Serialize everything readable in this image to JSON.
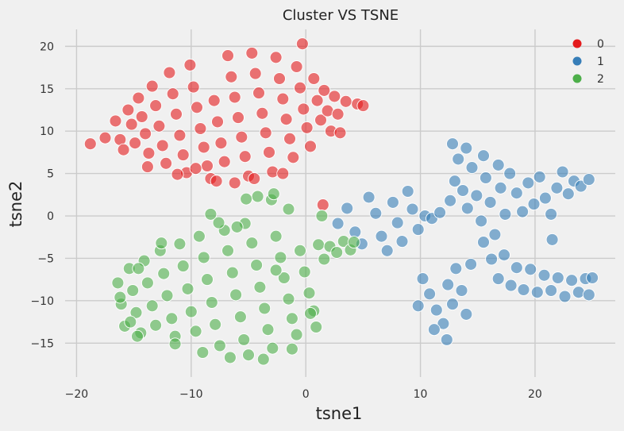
{
  "chart_data": {
    "type": "scatter",
    "title": "Cluster VS TSNE",
    "xlabel": "tsne1",
    "ylabel": "tsne2",
    "xlim": [
      -21,
      27
    ],
    "ylim": [
      -19,
      22
    ],
    "xticks": [
      -20,
      -10,
      0,
      10,
      20
    ],
    "yticks": [
      -15,
      -10,
      -5,
      0,
      5,
      10,
      15,
      20
    ],
    "xtick_labels": [
      "−20",
      "−10",
      "0",
      "10",
      "20"
    ],
    "ytick_labels": [
      "−15",
      "−10",
      "−5",
      "0",
      "5",
      "10",
      "15",
      "20"
    ],
    "grid": true,
    "legend_position": "top-right",
    "series": [
      {
        "name": "0",
        "color": "#e41a1c",
        "points": [
          [
            -18.8,
            8.5
          ],
          [
            -17.5,
            9.2
          ],
          [
            -16.6,
            11.2
          ],
          [
            -16.2,
            9.0
          ],
          [
            -15.9,
            7.8
          ],
          [
            -15.5,
            12.5
          ],
          [
            -15.2,
            10.8
          ],
          [
            -14.9,
            8.6
          ],
          [
            -14.6,
            13.9
          ],
          [
            -14.3,
            11.7
          ],
          [
            -14.0,
            9.7
          ],
          [
            -13.7,
            7.4
          ],
          [
            -13.4,
            15.3
          ],
          [
            -13.1,
            13.0
          ],
          [
            -12.8,
            10.6
          ],
          [
            -12.5,
            8.3
          ],
          [
            -12.2,
            6.2
          ],
          [
            -11.9,
            16.9
          ],
          [
            -11.6,
            14.4
          ],
          [
            -11.3,
            12.0
          ],
          [
            -11.0,
            9.5
          ],
          [
            -10.7,
            7.2
          ],
          [
            -10.4,
            5.1
          ],
          [
            -10.1,
            17.8
          ],
          [
            -9.8,
            15.2
          ],
          [
            -9.5,
            12.8
          ],
          [
            -9.2,
            10.3
          ],
          [
            -8.9,
            8.1
          ],
          [
            -8.6,
            5.9
          ],
          [
            -8.3,
            4.4
          ],
          [
            -8.0,
            13.6
          ],
          [
            -7.7,
            11.1
          ],
          [
            -7.4,
            8.6
          ],
          [
            -7.1,
            6.4
          ],
          [
            -6.8,
            18.9
          ],
          [
            -6.5,
            16.4
          ],
          [
            -6.2,
            14.0
          ],
          [
            -5.9,
            11.6
          ],
          [
            -5.6,
            9.3
          ],
          [
            -5.3,
            7.0
          ],
          [
            -5.0,
            4.7
          ],
          [
            -4.7,
            19.2
          ],
          [
            -4.4,
            16.8
          ],
          [
            -4.1,
            14.5
          ],
          [
            -3.8,
            12.1
          ],
          [
            -3.5,
            9.8
          ],
          [
            -3.2,
            7.5
          ],
          [
            -2.9,
            5.2
          ],
          [
            -2.6,
            18.7
          ],
          [
            -2.3,
            16.2
          ],
          [
            -2.0,
            13.8
          ],
          [
            -1.7,
            11.4
          ],
          [
            -1.4,
            9.1
          ],
          [
            -1.1,
            6.9
          ],
          [
            -0.8,
            17.6
          ],
          [
            -0.5,
            15.1
          ],
          [
            -0.2,
            12.6
          ],
          [
            0.1,
            10.4
          ],
          [
            0.4,
            8.2
          ],
          [
            0.7,
            16.2
          ],
          [
            1.0,
            13.6
          ],
          [
            1.3,
            11.3
          ],
          [
            1.6,
            14.8
          ],
          [
            1.9,
            12.4
          ],
          [
            2.2,
            10.0
          ],
          [
            2.5,
            14.1
          ],
          [
            2.8,
            12.0
          ],
          [
            3.5,
            13.5
          ],
          [
            4.5,
            13.2
          ],
          [
            5.0,
            13.0
          ],
          [
            -13.8,
            5.8
          ],
          [
            -11.2,
            4.9
          ],
          [
            -9.6,
            5.6
          ],
          [
            -7.8,
            4.1
          ],
          [
            -6.2,
            3.9
          ],
          [
            -4.5,
            4.4
          ],
          [
            -2.0,
            5.0
          ],
          [
            -0.3,
            20.3
          ],
          [
            3.0,
            9.8
          ],
          [
            1.5,
            1.3
          ]
        ]
      },
      {
        "name": "1",
        "color": "#377eb8",
        "points": [
          [
            2.8,
            -0.9
          ],
          [
            3.6,
            0.9
          ],
          [
            4.3,
            -1.9
          ],
          [
            4.9,
            -3.3
          ],
          [
            5.5,
            2.2
          ],
          [
            6.1,
            0.3
          ],
          [
            6.6,
            -2.4
          ],
          [
            7.1,
            -4.1
          ],
          [
            7.6,
            1.6
          ],
          [
            8.0,
            -0.8
          ],
          [
            8.4,
            -3.0
          ],
          [
            8.9,
            2.9
          ],
          [
            9.3,
            0.8
          ],
          [
            9.8,
            -1.6
          ],
          [
            10.4,
            0.0
          ],
          [
            11.0,
            -0.3
          ],
          [
            11.7,
            0.4
          ],
          [
            10.2,
            -7.4
          ],
          [
            10.8,
            -9.2
          ],
          [
            11.4,
            -11.1
          ],
          [
            12.0,
            -12.7
          ],
          [
            12.4,
            -8.1
          ],
          [
            12.8,
            -10.4
          ],
          [
            13.1,
            -6.2
          ],
          [
            13.6,
            -8.8
          ],
          [
            14.0,
            -11.6
          ],
          [
            14.4,
            -5.7
          ],
          [
            12.3,
            -14.6
          ],
          [
            11.2,
            -13.4
          ],
          [
            9.8,
            -10.6
          ],
          [
            12.6,
            1.8
          ],
          [
            13.0,
            4.1
          ],
          [
            13.3,
            6.7
          ],
          [
            13.7,
            3.0
          ],
          [
            14.1,
            0.9
          ],
          [
            14.5,
            5.7
          ],
          [
            14.9,
            2.4
          ],
          [
            15.3,
            -0.6
          ],
          [
            15.7,
            4.5
          ],
          [
            16.1,
            1.6
          ],
          [
            16.5,
            -2.2
          ],
          [
            17.0,
            3.3
          ],
          [
            17.4,
            0.2
          ],
          [
            12.8,
            8.5
          ],
          [
            14.0,
            8.0
          ],
          [
            15.5,
            7.1
          ],
          [
            16.8,
            6.0
          ],
          [
            17.8,
            5.0
          ],
          [
            18.4,
            2.7
          ],
          [
            18.9,
            0.5
          ],
          [
            19.4,
            3.9
          ],
          [
            19.9,
            1.4
          ],
          [
            20.4,
            4.6
          ],
          [
            20.9,
            2.1
          ],
          [
            21.4,
            0.2
          ],
          [
            21.9,
            3.3
          ],
          [
            22.4,
            5.2
          ],
          [
            22.9,
            2.6
          ],
          [
            23.4,
            4.1
          ],
          [
            24.0,
            3.5
          ],
          [
            24.7,
            4.3
          ],
          [
            15.5,
            -3.1
          ],
          [
            16.2,
            -5.1
          ],
          [
            16.8,
            -7.4
          ],
          [
            17.3,
            -4.6
          ],
          [
            17.9,
            -8.2
          ],
          [
            18.4,
            -6.1
          ],
          [
            19.0,
            -8.7
          ],
          [
            19.6,
            -6.3
          ],
          [
            20.2,
            -9.0
          ],
          [
            20.8,
            -7.0
          ],
          [
            21.4,
            -8.8
          ],
          [
            22.0,
            -7.3
          ],
          [
            22.6,
            -9.5
          ],
          [
            23.2,
            -7.6
          ],
          [
            23.8,
            -9.0
          ],
          [
            24.4,
            -7.4
          ],
          [
            25.0,
            -7.3
          ],
          [
            24.7,
            -9.3
          ],
          [
            21.5,
            -2.8
          ]
        ]
      },
      {
        "name": "2",
        "color": "#4daf4a",
        "points": [
          [
            -16.4,
            -7.9
          ],
          [
            -16.1,
            -10.4
          ],
          [
            -15.8,
            -13.0
          ],
          [
            -15.4,
            -6.2
          ],
          [
            -15.1,
            -8.8
          ],
          [
            -14.8,
            -11.4
          ],
          [
            -14.4,
            -13.8
          ],
          [
            -14.1,
            -5.3
          ],
          [
            -13.8,
            -7.9
          ],
          [
            -13.4,
            -10.6
          ],
          [
            -13.1,
            -12.9
          ],
          [
            -12.7,
            -4.1
          ],
          [
            -12.4,
            -6.8
          ],
          [
            -12.1,
            -9.4
          ],
          [
            -11.7,
            -12.1
          ],
          [
            -11.4,
            -14.2
          ],
          [
            -11.0,
            -3.3
          ],
          [
            -10.7,
            -5.9
          ],
          [
            -10.3,
            -8.6
          ],
          [
            -10.0,
            -11.3
          ],
          [
            -9.6,
            -13.6
          ],
          [
            -9.3,
            -2.4
          ],
          [
            -8.9,
            -4.9
          ],
          [
            -8.6,
            -7.5
          ],
          [
            -8.2,
            -10.2
          ],
          [
            -7.9,
            -12.8
          ],
          [
            -7.5,
            -15.3
          ],
          [
            -7.1,
            -1.7
          ],
          [
            -6.8,
            -4.1
          ],
          [
            -6.4,
            -6.7
          ],
          [
            -6.1,
            -9.3
          ],
          [
            -5.7,
            -11.9
          ],
          [
            -5.4,
            -14.6
          ],
          [
            -5.0,
            -16.4
          ],
          [
            -4.7,
            -3.2
          ],
          [
            -4.3,
            -5.8
          ],
          [
            -4.0,
            -8.4
          ],
          [
            -3.6,
            -10.9
          ],
          [
            -3.3,
            -13.4
          ],
          [
            -2.9,
            -15.6
          ],
          [
            -2.6,
            -2.4
          ],
          [
            -2.2,
            -4.9
          ],
          [
            -1.9,
            -7.3
          ],
          [
            -1.5,
            -9.8
          ],
          [
            -1.2,
            -12.1
          ],
          [
            -0.8,
            -14.0
          ],
          [
            -0.5,
            -4.1
          ],
          [
            -0.1,
            -6.6
          ],
          [
            0.3,
            -9.1
          ],
          [
            0.7,
            -11.2
          ],
          [
            1.1,
            -3.4
          ],
          [
            1.6,
            -5.1
          ],
          [
            2.1,
            -3.6
          ],
          [
            2.7,
            -4.3
          ],
          [
            3.3,
            -3.0
          ],
          [
            3.9,
            -4.0
          ],
          [
            4.2,
            -3.1
          ],
          [
            1.4,
            0.0
          ],
          [
            -1.5,
            0.8
          ],
          [
            -3.0,
            1.9
          ],
          [
            -4.2,
            2.3
          ],
          [
            -5.2,
            2.0
          ],
          [
            -7.6,
            -0.8
          ],
          [
            -8.3,
            0.2
          ],
          [
            -5.3,
            -0.9
          ],
          [
            -12.6,
            -3.2
          ],
          [
            -14.6,
            -6.2
          ],
          [
            -16.2,
            -9.6
          ],
          [
            -15.3,
            -12.5
          ],
          [
            -14.7,
            -14.2
          ],
          [
            -11.4,
            -15.1
          ],
          [
            -9.0,
            -16.1
          ],
          [
            -6.6,
            -16.7
          ],
          [
            -3.7,
            -16.9
          ],
          [
            -1.2,
            -15.7
          ],
          [
            0.9,
            -13.1
          ],
          [
            -2.6,
            -6.4
          ],
          [
            -2.8,
            2.6
          ],
          [
            -6.0,
            -1.3
          ],
          [
            0.4,
            -11.5
          ]
        ]
      }
    ]
  }
}
